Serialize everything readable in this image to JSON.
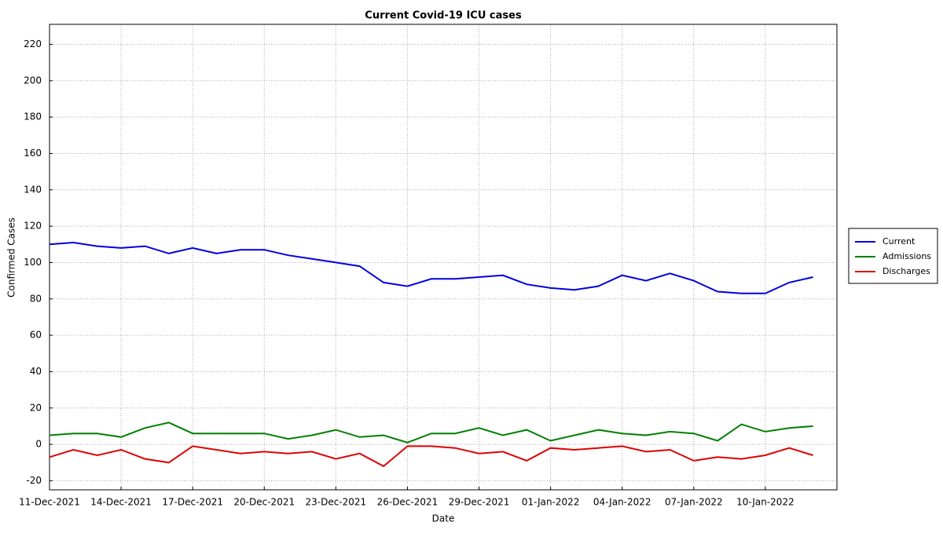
{
  "chart_data": {
    "type": "line",
    "title": "Current Covid-19 ICU cases",
    "xlabel": "Date",
    "ylabel": "Confirmed Cases",
    "x": [
      "2021-12-11",
      "2021-12-12",
      "2021-12-13",
      "2021-12-14",
      "2021-12-15",
      "2021-12-16",
      "2021-12-17",
      "2021-12-18",
      "2021-12-19",
      "2021-12-20",
      "2021-12-21",
      "2021-12-22",
      "2021-12-23",
      "2021-12-24",
      "2021-12-25",
      "2021-12-26",
      "2021-12-27",
      "2021-12-28",
      "2021-12-29",
      "2021-12-30",
      "2021-12-31",
      "2022-01-01",
      "2022-01-02",
      "2022-01-03",
      "2022-01-04",
      "2022-01-05",
      "2022-01-06",
      "2022-01-07",
      "2022-01-08",
      "2022-01-09",
      "2022-01-10",
      "2022-01-11",
      "2022-01-12"
    ],
    "series": [
      {
        "name": "Current",
        "color": "#0000e0",
        "values": [
          110,
          111,
          109,
          108,
          109,
          105,
          108,
          105,
          107,
          107,
          104,
          102,
          100,
          98,
          89,
          87,
          91,
          91,
          92,
          93,
          88,
          86,
          85,
          87,
          93,
          90,
          94,
          90,
          84,
          83,
          83,
          89,
          92
        ]
      },
      {
        "name": "Admissions",
        "color": "#008000",
        "values": [
          5,
          6,
          6,
          4,
          9,
          12,
          6,
          6,
          6,
          6,
          3,
          5,
          8,
          4,
          5,
          1,
          6,
          6,
          9,
          5,
          8,
          2,
          5,
          8,
          6,
          5,
          7,
          6,
          2,
          11,
          7,
          9,
          10
        ]
      },
      {
        "name": "Discharges",
        "color": "#e00000",
        "values": [
          -7,
          -3,
          -6,
          -3,
          -8,
          -10,
          -1,
          -3,
          -5,
          -4,
          -5,
          -4,
          -8,
          -5,
          -12,
          -1,
          -1,
          -2,
          -5,
          -4,
          -9,
          -2,
          -3,
          -2,
          -1,
          -4,
          -3,
          -9,
          -7,
          -8,
          -6,
          -2,
          -6
        ]
      }
    ],
    "xlim": [
      "2021-12-11",
      "2022-01-13"
    ],
    "xticks": [
      {
        "value": "2021-12-11",
        "label": "11-Dec-2021"
      },
      {
        "value": "2021-12-14",
        "label": "14-Dec-2021"
      },
      {
        "value": "2021-12-17",
        "label": "17-Dec-2021"
      },
      {
        "value": "2021-12-20",
        "label": "20-Dec-2021"
      },
      {
        "value": "2021-12-23",
        "label": "23-Dec-2021"
      },
      {
        "value": "2021-12-26",
        "label": "26-Dec-2021"
      },
      {
        "value": "2021-12-29",
        "label": "29-Dec-2021"
      },
      {
        "value": "2022-01-01",
        "label": "01-Jan-2022"
      },
      {
        "value": "2022-01-04",
        "label": "04-Jan-2022"
      },
      {
        "value": "2022-01-07",
        "label": "07-Jan-2022"
      },
      {
        "value": "2022-01-10",
        "label": "10-Jan-2022"
      }
    ],
    "ylim": [
      -25,
      231
    ],
    "yticks": [
      -20,
      0,
      20,
      40,
      60,
      80,
      100,
      120,
      140,
      160,
      180,
      200,
      220
    ],
    "grid": true,
    "legend": "right"
  }
}
